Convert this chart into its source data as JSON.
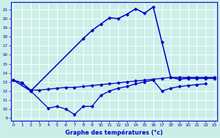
{
  "xlabel": "Graphe des températures (°c)",
  "bg": "#cceee8",
  "line_color": "#0000cc",
  "line_flat": [
    13.2,
    12.9,
    12.1,
    12.1,
    12.2,
    12.3,
    12.4,
    12.4,
    12.5,
    12.6,
    12.7,
    12.8,
    12.9,
    13.0,
    13.1,
    13.2,
    13.3,
    13.4,
    13.5,
    13.5,
    13.5,
    13.5,
    13.5,
    13.5
  ],
  "line_dip_x": [
    0,
    1,
    2,
    4,
    5,
    6,
    7,
    8,
    9,
    10,
    11,
    12,
    13,
    14,
    15,
    16,
    17,
    18,
    19,
    20,
    21,
    22
  ],
  "line_dip": [
    13.2,
    12.9,
    12.0,
    10.1,
    10.3,
    10.0,
    9.4,
    10.3,
    10.3,
    11.5,
    12.0,
    12.3,
    12.5,
    12.8,
    13.0,
    13.2,
    12.0,
    12.3,
    12.5,
    12.6,
    12.7,
    12.8
  ],
  "line_top_x": [
    0,
    2,
    8,
    9,
    10,
    11,
    12,
    13,
    14,
    15,
    16,
    17,
    18,
    19,
    20,
    21,
    22,
    23
  ],
  "line_top": [
    13.2,
    12.0,
    17.8,
    18.7,
    19.4,
    20.1,
    20.0,
    20.5,
    21.1,
    20.6,
    21.3,
    17.4,
    13.5,
    13.3,
    13.4,
    13.4,
    13.4,
    13.4
  ],
  "yticks": [
    9,
    10,
    11,
    12,
    13,
    14,
    15,
    16,
    17,
    18,
    19,
    20,
    21
  ],
  "xticks": [
    0,
    1,
    2,
    3,
    4,
    5,
    6,
    7,
    8,
    9,
    10,
    11,
    12,
    13,
    14,
    15,
    16,
    17,
    18,
    19,
    20,
    21,
    22,
    23
  ],
  "ylim_min": 8.7,
  "ylim_max": 21.8,
  "xlim_min": -0.3,
  "xlim_max": 23.3
}
